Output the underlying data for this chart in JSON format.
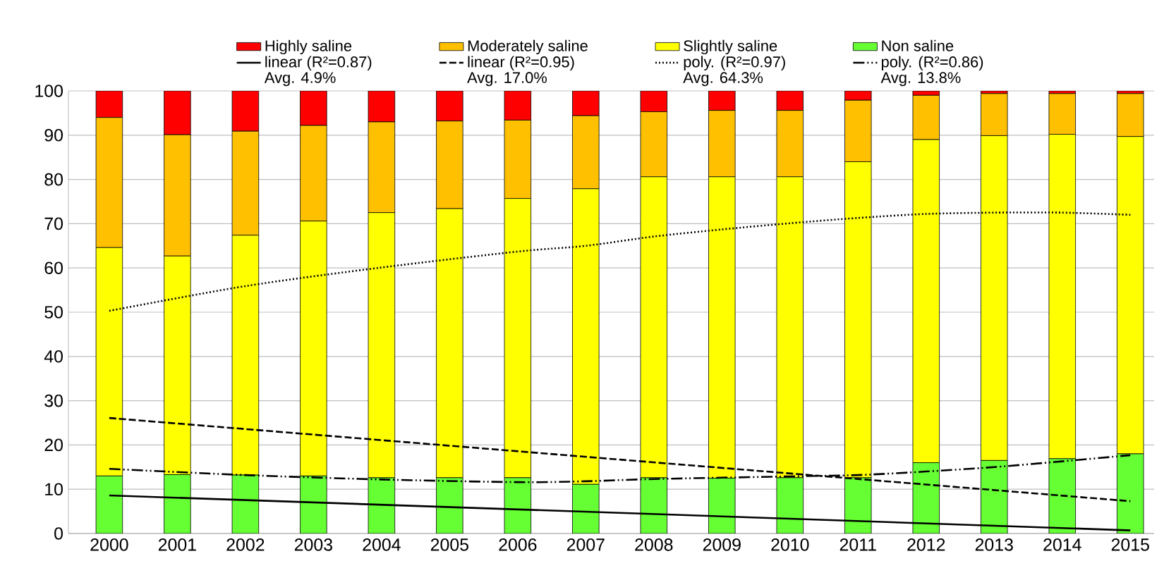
{
  "chart_data": {
    "type": "bar",
    "stacked": true,
    "x": [
      2000,
      2001,
      2002,
      2003,
      2004,
      2005,
      2006,
      2007,
      2008,
      2009,
      2010,
      2011,
      2012,
      2013,
      2014,
      2015
    ],
    "series": [
      {
        "name": "Non saline",
        "color": "#66ff33",
        "values": [
          13.0,
          13.3,
          13.2,
          13.0,
          12.6,
          12.6,
          12.6,
          11.1,
          12.6,
          12.5,
          12.6,
          12.6,
          16.0,
          16.5,
          16.9,
          18.0
        ]
      },
      {
        "name": "Slightly saline",
        "color": "#ffff00",
        "values": [
          51.6,
          49.4,
          54.2,
          57.6,
          59.9,
          60.8,
          63.1,
          66.8,
          68.0,
          68.1,
          68.0,
          71.4,
          73.0,
          73.4,
          73.3,
          71.7
        ]
      },
      {
        "name": "Moderately saline",
        "color": "#ffc000",
        "values": [
          29.4,
          27.4,
          23.5,
          21.6,
          20.5,
          19.8,
          17.7,
          16.5,
          14.7,
          15.0,
          15.0,
          13.9,
          10.0,
          9.5,
          9.2,
          9.7
        ]
      },
      {
        "name": "Highly saline",
        "color": "#ff0000",
        "values": [
          6.0,
          9.9,
          9.1,
          7.8,
          7.0,
          6.8,
          6.6,
          5.6,
          4.7,
          4.4,
          4.4,
          2.1,
          1.0,
          0.6,
          0.6,
          0.6
        ]
      },
      {
        "name": "linear (R²=0.87)",
        "type": "line",
        "color": "#000000",
        "line_style": "solid",
        "x": [
          2000,
          2015
        ],
        "values": [
          8.6,
          0.7
        ]
      },
      {
        "name": "linear (R²=0.95)",
        "type": "line",
        "color": "#000000",
        "line_style": "dashed",
        "x": [
          2000,
          2015
        ],
        "values": [
          26.1,
          7.3
        ]
      },
      {
        "name": "poly. (R²=0.97)",
        "type": "line",
        "color": "#000000",
        "line_style": "dotted",
        "x": [
          2000,
          2002,
          2004,
          2006,
          2007,
          2008,
          2009,
          2010,
          2011,
          2012,
          2013,
          2014,
          2015
        ],
        "values": [
          50.3,
          55.9,
          60.1,
          63.7,
          65.0,
          67.1,
          68.7,
          70.1,
          71.3,
          72.2,
          72.5,
          72.5,
          72.0
        ]
      },
      {
        "name": "poly. (R²=0.86)",
        "type": "line",
        "color": "#000000",
        "line_style": "dashdotted",
        "x": [
          2000,
          2002,
          2004,
          2006,
          2007,
          2008,
          2010,
          2011,
          2012,
          2013,
          2014,
          2015
        ],
        "values": [
          14.6,
          13.2,
          12.2,
          11.6,
          11.8,
          12.3,
          12.9,
          13.2,
          14.0,
          15.0,
          16.3,
          17.7
        ]
      }
    ],
    "annotations": [
      "Avg. 4.9%",
      "Avg. 17.0%",
      "Avg. 64.3%",
      "Avg. 13.8%"
    ],
    "xlim": [
      1999.4,
      2015.35
    ],
    "xticks": [
      2000,
      2001,
      2002,
      2003,
      2004,
      2005,
      2006,
      2007,
      2008,
      2009,
      2010,
      2011,
      2012,
      2013,
      2014,
      2015
    ],
    "ylim": [
      0,
      100
    ],
    "yticks": [
      0,
      10,
      20,
      30,
      40,
      50,
      60,
      70,
      80,
      90,
      100
    ],
    "grid": "y",
    "legend": "top",
    "marker": "none"
  }
}
